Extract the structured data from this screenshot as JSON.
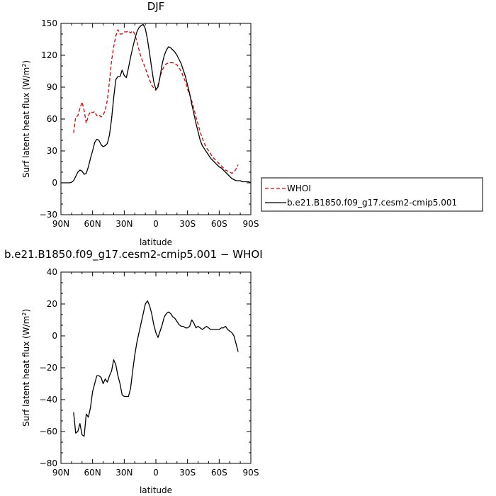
{
  "chart_data": [
    {
      "type": "line",
      "title": "DJF",
      "xlabel": "latitude",
      "ylabel": "Surf latent heat flux (W/m",
      "ylabel_sup": "2",
      "ylabel_end": ")",
      "xlim": [
        90,
        -90
      ],
      "ylim": [
        -30,
        150
      ],
      "x_ticks": [
        90,
        60,
        30,
        0,
        -30,
        -60,
        -90
      ],
      "x_tick_labels": [
        "90N",
        "60N",
        "30N",
        "0",
        "30S",
        "60S",
        "90S"
      ],
      "y_ticks": [
        -30,
        0,
        30,
        60,
        90,
        120,
        150
      ],
      "y_tick_labels": [
        "−30",
        "0",
        "30",
        "60",
        "90",
        "120",
        "150"
      ],
      "legend": {
        "placement": "right-outside"
      },
      "series": [
        {
          "name": "WHOI",
          "color": "#e00000",
          "dash": "dashed",
          "x": [
            78,
            76,
            74,
            72,
            70,
            68,
            66,
            64,
            62,
            60,
            58,
            56,
            54,
            52,
            50,
            48,
            46,
            44,
            42,
            40,
            38,
            36,
            34,
            32,
            30,
            28,
            26,
            24,
            22,
            20,
            18,
            16,
            14,
            12,
            10,
            8,
            6,
            4,
            2,
            0,
            -2,
            -4,
            -6,
            -8,
            -10,
            -12,
            -14,
            -16,
            -18,
            -20,
            -22,
            -24,
            -26,
            -28,
            -30,
            -32,
            -34,
            -36,
            -38,
            -40,
            -42,
            -44,
            -46,
            -48,
            -50,
            -52,
            -54,
            -56,
            -58,
            -60,
            -62,
            -64,
            -66,
            -68,
            -70,
            -72,
            -74,
            -76,
            -78
          ],
          "y": [
            47,
            62,
            63,
            70,
            76,
            68,
            56,
            63,
            67,
            66,
            67,
            63,
            64,
            62,
            64,
            68,
            78,
            95,
            115,
            128,
            138,
            144,
            140,
            140,
            142,
            142,
            143,
            141,
            143,
            140,
            133,
            125,
            118,
            113,
            108,
            102,
            97,
            92,
            89,
            87,
            92,
            100,
            106,
            110,
            112,
            113,
            113,
            113,
            112,
            111,
            108,
            105,
            100,
            95,
            88,
            83,
            77,
            70,
            62,
            55,
            48,
            42,
            37,
            33,
            30,
            27,
            24,
            22,
            20,
            18,
            16,
            14,
            12,
            11,
            10,
            9,
            10,
            13,
            17
          ]
        },
        {
          "name": "b.e21.B1850.f09_g17.cesm2-cmip5.001",
          "color": "#000000",
          "dash": "solid",
          "x": [
            90,
            88,
            86,
            84,
            82,
            80,
            78,
            76,
            74,
            72,
            70,
            68,
            66,
            64,
            62,
            60,
            58,
            56,
            54,
            52,
            50,
            48,
            46,
            44,
            42,
            40,
            38,
            36,
            34,
            32,
            30,
            28,
            26,
            24,
            22,
            20,
            18,
            16,
            14,
            12,
            10,
            8,
            6,
            4,
            2,
            0,
            -2,
            -4,
            -6,
            -8,
            -10,
            -12,
            -14,
            -16,
            -18,
            -20,
            -22,
            -24,
            -26,
            -28,
            -30,
            -32,
            -34,
            -36,
            -38,
            -40,
            -42,
            -44,
            -46,
            -48,
            -50,
            -52,
            -54,
            -56,
            -58,
            -60,
            -62,
            -64,
            -66,
            -68,
            -70,
            -72,
            -74,
            -76,
            -78,
            -80,
            -82,
            -84,
            -86,
            -88,
            -90
          ],
          "y": [
            0,
            0,
            0,
            0,
            0,
            0.5,
            2,
            6,
            10,
            12,
            11,
            8,
            9,
            15,
            23,
            30,
            38,
            41,
            40,
            36,
            34,
            35,
            37,
            45,
            60,
            80,
            97,
            100,
            100,
            106,
            101,
            99,
            108,
            118,
            127,
            135,
            142,
            146,
            148,
            149,
            145,
            135,
            122,
            108,
            95,
            88,
            90,
            100,
            112,
            120,
            125,
            128,
            127,
            125,
            123,
            120,
            116,
            112,
            106,
            100,
            92,
            84,
            74,
            65,
            56,
            48,
            40,
            35,
            32,
            29,
            26,
            23,
            21,
            19,
            17,
            15,
            14,
            12,
            10,
            8,
            6,
            4,
            3,
            2,
            2,
            2,
            1,
            1,
            1,
            1,
            0
          ]
        }
      ]
    },
    {
      "type": "line",
      "title": "b.e21.B1850.f09_g17.cesm2-cmip5.001  −  WHOI",
      "xlabel": "latitude",
      "ylabel": "Surf latent heat flux (W/m",
      "ylabel_sup": "2",
      "ylabel_end": ")",
      "xlim": [
        90,
        -90
      ],
      "ylim": [
        -80,
        40
      ],
      "x_ticks": [
        90,
        60,
        30,
        0,
        -30,
        -60,
        -90
      ],
      "x_tick_labels": [
        "90N",
        "60N",
        "30N",
        "0",
        "30S",
        "60S",
        "90S"
      ],
      "y_ticks": [
        -80,
        -60,
        -40,
        -20,
        0,
        20,
        40
      ],
      "y_tick_labels": [
        "−80",
        "−60",
        "−40",
        "−20",
        "0",
        "20",
        "40"
      ],
      "series": [
        {
          "color": "#000000",
          "dash": "solid",
          "x": [
            78,
            76,
            74,
            72,
            70,
            68,
            66,
            64,
            62,
            60,
            58,
            56,
            54,
            52,
            50,
            48,
            46,
            44,
            42,
            40,
            38,
            36,
            34,
            32,
            30,
            28,
            26,
            24,
            22,
            20,
            18,
            16,
            14,
            12,
            10,
            8,
            6,
            4,
            2,
            0,
            -2,
            -4,
            -6,
            -8,
            -10,
            -12,
            -14,
            -16,
            -18,
            -20,
            -22,
            -24,
            -26,
            -28,
            -30,
            -32,
            -34,
            -36,
            -38,
            -40,
            -42,
            -44,
            -46,
            -48,
            -50,
            -52,
            -54,
            -56,
            -58,
            -60,
            -62,
            -64,
            -66,
            -68,
            -70,
            -72,
            -74,
            -76,
            -78
          ],
          "y": [
            -48,
            -61,
            -60,
            -55,
            -62,
            -63,
            -49,
            -51,
            -45,
            -35,
            -30,
            -25,
            -25,
            -26,
            -30,
            -27,
            -29,
            -25,
            -22,
            -15,
            -18,
            -25,
            -30,
            -37,
            -38,
            -38,
            -38,
            -33,
            -22,
            -12,
            -4,
            2,
            8,
            14,
            20,
            22,
            19,
            14,
            7,
            2,
            -1,
            3,
            7,
            12,
            14,
            15,
            14,
            12,
            11,
            9,
            7,
            6,
            6,
            5,
            5,
            6,
            10,
            8,
            5,
            6,
            5,
            4,
            5,
            6,
            5,
            4,
            4,
            4,
            4,
            4,
            5,
            5,
            6,
            4,
            3,
            2,
            0,
            -5,
            -10
          ]
        }
      ]
    }
  ]
}
